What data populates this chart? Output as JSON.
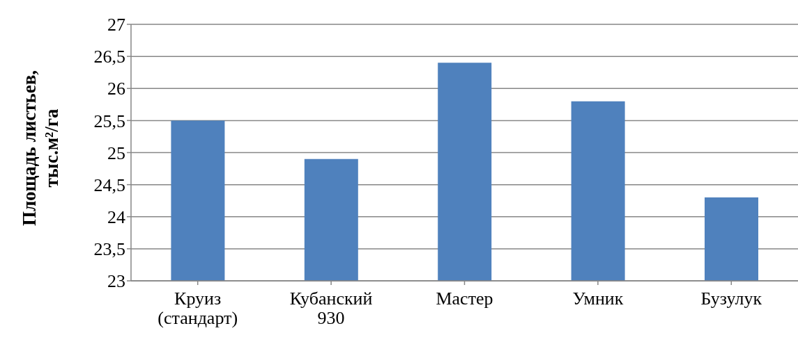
{
  "chart_data": {
    "type": "bar",
    "ylabel": "Площадь листьев, тыс.м²/га",
    "categories": [
      "Круиз (стандарт)",
      "Кубанский 930",
      "Мастер",
      "Умник",
      "Бузулук"
    ],
    "values": [
      25.5,
      24.9,
      26.4,
      25.8,
      24.3
    ],
    "color": "#4f81bd",
    "ylim": [
      23,
      27
    ],
    "yticks": [
      23,
      {
        "value": 23.5,
        "label": "23,5"
      },
      24,
      {
        "value": 24.5,
        "label": "24,5"
      },
      25,
      {
        "value": 25.5,
        "label": "25,5"
      },
      26,
      {
        "value": 26.5,
        "label": "26,5"
      },
      27
    ],
    "grid": "y",
    "legend": false
  }
}
